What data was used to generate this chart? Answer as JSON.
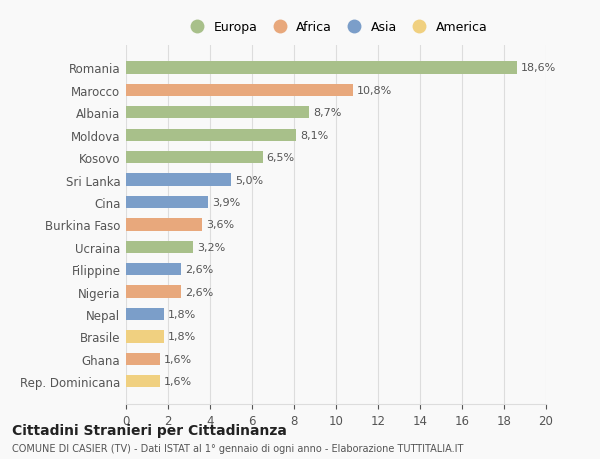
{
  "countries": [
    "Romania",
    "Marocco",
    "Albania",
    "Moldova",
    "Kosovo",
    "Sri Lanka",
    "Cina",
    "Burkina Faso",
    "Ucraina",
    "Filippine",
    "Nigeria",
    "Nepal",
    "Brasile",
    "Ghana",
    "Rep. Dominicana"
  ],
  "values": [
    18.6,
    10.8,
    8.7,
    8.1,
    6.5,
    5.0,
    3.9,
    3.6,
    3.2,
    2.6,
    2.6,
    1.8,
    1.8,
    1.6,
    1.6
  ],
  "labels": [
    "18,6%",
    "10,8%",
    "8,7%",
    "8,1%",
    "6,5%",
    "5,0%",
    "3,9%",
    "3,6%",
    "3,2%",
    "2,6%",
    "2,6%",
    "1,8%",
    "1,8%",
    "1,6%",
    "1,6%"
  ],
  "continents": [
    "Europa",
    "Africa",
    "Europa",
    "Europa",
    "Europa",
    "Asia",
    "Asia",
    "Africa",
    "Europa",
    "Asia",
    "Africa",
    "Asia",
    "America",
    "Africa",
    "America"
  ],
  "continent_colors": {
    "Europa": "#a8c08a",
    "Africa": "#e8a87c",
    "Asia": "#7b9ec9",
    "America": "#f0d080"
  },
  "legend_order": [
    "Europa",
    "Africa",
    "Asia",
    "America"
  ],
  "title": "Cittadini Stranieri per Cittadinanza",
  "subtitle": "COMUNE DI CASIER (TV) - Dati ISTAT al 1° gennaio di ogni anno - Elaborazione TUTTITALIA.IT",
  "xlim": [
    0,
    20
  ],
  "xticks": [
    0,
    2,
    4,
    6,
    8,
    10,
    12,
    14,
    16,
    18,
    20
  ],
  "background_color": "#f9f9f9",
  "grid_color": "#dddddd"
}
